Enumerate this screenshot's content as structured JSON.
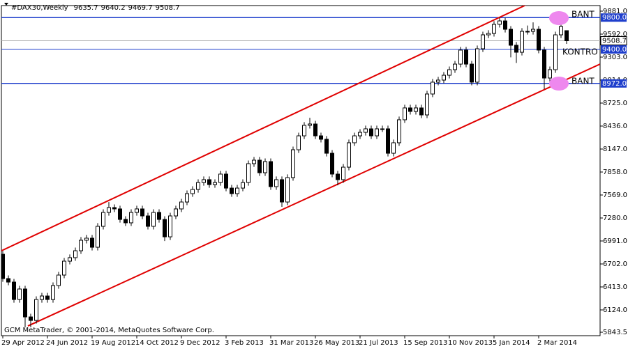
{
  "chart_data": {
    "type": "candlestick",
    "symbol": "#DAX30,Weekly",
    "footer": "GCM MetaTrader, © 2001-2014, MetaQuotes Software Corp.",
    "annotations": [
      "BANT",
      "KONTRO",
      "BANT"
    ],
    "bull_color": "#ffffff",
    "bear_color": "#000000",
    "categories": [
      "29 Apr 2012",
      null,
      null,
      null,
      null,
      null,
      null,
      null,
      "24 Jun 2012",
      null,
      null,
      null,
      null,
      null,
      null,
      null,
      "19 Aug 2012",
      null,
      null,
      null,
      null,
      null,
      null,
      null,
      "14 Oct 2012",
      null,
      null,
      null,
      null,
      null,
      null,
      null,
      "9 Dec 2012",
      null,
      null,
      null,
      null,
      null,
      null,
      null,
      "3 Feb 2013",
      null,
      null,
      null,
      null,
      null,
      null,
      null,
      "31 Mar 2013",
      null,
      null,
      null,
      null,
      null,
      null,
      null,
      "26 May 2013",
      null,
      null,
      null,
      null,
      null,
      null,
      null,
      "21 Jul 2013",
      null,
      null,
      null,
      null,
      null,
      null,
      null,
      "15 Sep 2013",
      null,
      null,
      null,
      null,
      null,
      null,
      null,
      "10 Nov 2013",
      null,
      null,
      null,
      null,
      null,
      null,
      null,
      "5 Jan 2014",
      null,
      null,
      null,
      null,
      null,
      null,
      null,
      "2 Mar 2014",
      null,
      null,
      null,
      null,
      null
    ],
    "open": [
      6824,
      6518,
      6474,
      6255,
      6387,
      6036,
      5992,
      6255,
      6299,
      6255,
      6430,
      6562,
      6737,
      6781,
      6868,
      7000,
      7026,
      6912,
      7175,
      7350,
      7411,
      7394,
      7262,
      7219,
      7350,
      7394,
      7306,
      7175,
      7350,
      7262,
      7043,
      7306,
      7394,
      7481,
      7586,
      7639,
      7726,
      7762,
      7700,
      7726,
      7832,
      7656,
      7586,
      7656,
      7726,
      7963,
      8007,
      7849,
      7989,
      7674,
      7762,
      7481,
      7788,
      8138,
      8313,
      8445,
      8462,
      8313,
      8270,
      8094,
      7832,
      7762,
      7919,
      8226,
      8313,
      8357,
      8401,
      8313,
      8401,
      8401,
      8094,
      8226,
      8515,
      8664,
      8620,
      8664,
      8576,
      8839,
      8988,
      9014,
      9075,
      9145,
      9215,
      9391,
      9215,
      8988,
      9408,
      9583,
      9601,
      9715,
      9758,
      9653,
      9452,
      9364,
      9627,
      9627,
      9653,
      9391,
      9040,
      9145,
      9583,
      9635.7
    ],
    "high": [
      6864,
      6558,
      6514,
      6427,
      6427,
      6076,
      6295,
      6339,
      6339,
      6470,
      6602,
      6777,
      6821,
      6908,
      7040,
      7066,
      7066,
      7215,
      7390,
      7480,
      7451,
      7434,
      7302,
      7390,
      7434,
      7434,
      7346,
      7390,
      7390,
      7302,
      7346,
      7434,
      7521,
      7626,
      7679,
      7766,
      7802,
      7802,
      7766,
      7872,
      7872,
      7696,
      7696,
      7766,
      8003,
      8047,
      8047,
      8029,
      8029,
      7802,
      7802,
      7828,
      8178,
      8353,
      8485,
      8540,
      8502,
      8353,
      8310,
      8134,
      7872,
      7959,
      8266,
      8353,
      8397,
      8441,
      8441,
      8441,
      8441,
      8441,
      8266,
      8555,
      8704,
      8704,
      8704,
      8704,
      8879,
      9028,
      9054,
      9115,
      9185,
      9255,
      9431,
      9431,
      9255,
      9448,
      9623,
      9641,
      9755,
      9798,
      9798,
      9693,
      9492,
      9667,
      9700,
      9740,
      9693,
      9431,
      9185,
      9623,
      9728,
      9640.2
    ],
    "low": [
      6478,
      6434,
      6215,
      6215,
      5905,
      5905,
      5952,
      6215,
      6215,
      6215,
      6390,
      6522,
      6697,
      6741,
      6828,
      6960,
      6872,
      6872,
      7135,
      7310,
      7354,
      7222,
      7179,
      7179,
      7310,
      7266,
      7135,
      7135,
      7222,
      6990,
      7003,
      7266,
      7354,
      7441,
      7546,
      7599,
      7686,
      7660,
      7660,
      7686,
      7616,
      7546,
      7546,
      7616,
      7686,
      7923,
      7809,
      7809,
      7634,
      7634,
      7420,
      7441,
      7748,
      8098,
      8273,
      8405,
      8273,
      8230,
      8054,
      7792,
      7690,
      7722,
      7879,
      8186,
      8273,
      8317,
      8273,
      8273,
      8361,
      8054,
      8054,
      8186,
      8475,
      8580,
      8580,
      8536,
      8536,
      8799,
      8948,
      8974,
      9035,
      9105,
      9175,
      9175,
      8948,
      8948,
      9368,
      9543,
      9561,
      9675,
      9613,
      9300,
      9230,
      9324,
      9587,
      9587,
      9351,
      8900,
      8960,
      9105,
      9543,
      9469.7
    ],
    "close": [
      6518,
      6474,
      6255,
      6387,
      6036,
      5992,
      6255,
      6299,
      6255,
      6430,
      6562,
      6737,
      6781,
      6868,
      7000,
      7026,
      6912,
      7175,
      7350,
      7411,
      7394,
      7262,
      7219,
      7350,
      7394,
      7306,
      7175,
      7350,
      7262,
      7043,
      7306,
      7394,
      7481,
      7586,
      7639,
      7726,
      7762,
      7700,
      7726,
      7832,
      7656,
      7586,
      7656,
      7726,
      7963,
      8007,
      7849,
      7989,
      7674,
      7762,
      7481,
      7788,
      8138,
      8313,
      8445,
      8462,
      8313,
      8270,
      8094,
      7832,
      7762,
      7919,
      8226,
      8313,
      8357,
      8401,
      8313,
      8401,
      8401,
      8094,
      8226,
      8515,
      8664,
      8620,
      8664,
      8576,
      8839,
      8988,
      9014,
      9075,
      9145,
      9215,
      9391,
      9215,
      8988,
      9408,
      9583,
      9601,
      9715,
      9758,
      9653,
      9452,
      9364,
      9627,
      9627,
      9653,
      9391,
      9040,
      9145,
      9583,
      9688,
      9508.7
    ],
    "channels": [
      {
        "color": "#e00000",
        "x": [
          -0.25,
          95.1
        ],
        "y": [
          6868,
          10004
        ]
      },
      {
        "color": "#e00000",
        "x": [
          4.5,
          107
        ],
        "y": [
          5922,
          9215
        ]
      }
    ],
    "hlines": [
      {
        "value": 9800,
        "label": "9800.0",
        "color": "#1f3fcc"
      },
      {
        "value": 9400,
        "label": "9400.0",
        "color": "#1f3fcc"
      },
      {
        "value": 8972,
        "label": "8972.0",
        "color": "#1f3fcc"
      }
    ],
    "price_line_color": "#b0b0b0",
    "ylim": [
      5800,
      9951
    ],
    "yticks": [
      {
        "value": 9881,
        "label": "9881.0"
      },
      {
        "value": 9592,
        "label": "9592.0"
      },
      {
        "value": 9303,
        "label": "9303.0"
      },
      {
        "value": 9014,
        "label": "9014.0"
      },
      {
        "value": 8725,
        "label": "8725.0"
      },
      {
        "value": 8436,
        "label": "8436.0"
      },
      {
        "value": 8147,
        "label": "8147.0"
      },
      {
        "value": 7858,
        "label": "7858.0"
      },
      {
        "value": 7569,
        "label": "7569.0"
      },
      {
        "value": 7280,
        "label": "7280.0"
      },
      {
        "value": 6991,
        "label": "6991.0"
      },
      {
        "value": 6702,
        "label": "6702.0"
      },
      {
        "value": 6413,
        "label": "6413.0"
      },
      {
        "value": 6124,
        "label": "6124.0"
      },
      5843.5
    ],
    "grid": false
  }
}
